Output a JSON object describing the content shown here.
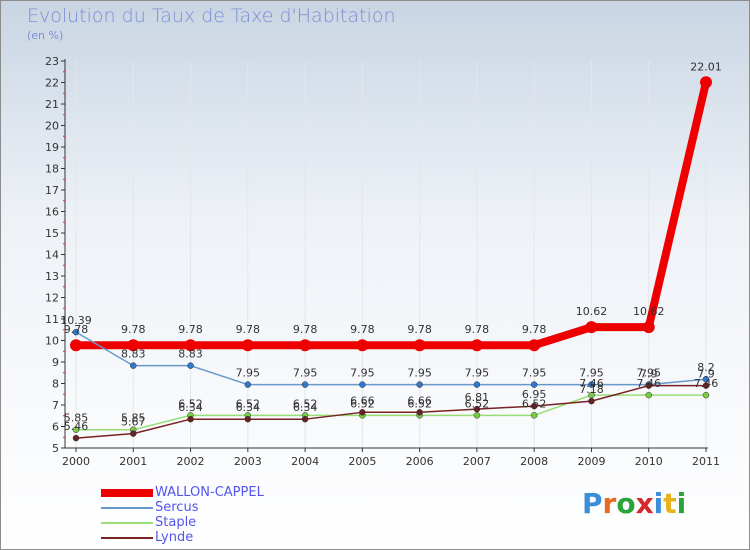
{
  "title": "Evolution du Taux de Taxe d'Habitation",
  "subtitle": "(en %)",
  "logo_text": "Proxiti",
  "logo_letters": [
    "P",
    "r",
    "o",
    "x",
    "i",
    "t",
    "i"
  ],
  "logo_colors": [
    "#3a8fd8",
    "#e86a1c",
    "#2aa33a",
    "#d8282e",
    "#3a8fd8",
    "#e8b21c",
    "#2aa33a"
  ],
  "chart_data": {
    "type": "line",
    "title": "Evolution du Taux de Taxe d'Habitation",
    "ylabel": "(en %)",
    "xlabel": "",
    "categories": [
      "2000",
      "2001",
      "2002",
      "2003",
      "2004",
      "2005",
      "2006",
      "2007",
      "2008",
      "2009",
      "2010",
      "2011"
    ],
    "ylim": [
      5,
      23
    ],
    "yticks": [
      5,
      6,
      7,
      8,
      9,
      10,
      11,
      12,
      13,
      14,
      15,
      16,
      17,
      18,
      19,
      20,
      21,
      22,
      23
    ],
    "series": [
      {
        "name": "WALLON-CAPPEL",
        "color": "#ee0000",
        "marker": "#ee0000",
        "width": 8,
        "values": [
          9.78,
          9.78,
          9.78,
          9.78,
          9.78,
          9.78,
          9.78,
          9.78,
          9.78,
          10.62,
          10.62,
          22.01
        ],
        "labels": [
          "9.78",
          "9.78",
          "9.78",
          "9.78",
          "9.78",
          "9.78",
          "9.78",
          "9.78",
          "9.78",
          "10.62",
          "10.62",
          "22.01"
        ]
      },
      {
        "name": "Sercus",
        "color": "#6699cc",
        "marker": "#3377cc",
        "width": 1.5,
        "values": [
          10.39,
          8.83,
          8.83,
          7.95,
          7.95,
          7.95,
          7.95,
          7.95,
          7.95,
          7.95,
          7.95,
          8.2
        ],
        "labels": [
          "10.39",
          "8.83",
          "8.83",
          "7.95",
          "7.95",
          "7.95",
          "7.95",
          "7.95",
          "7.95",
          "7.95",
          "7.95",
          "8.2"
        ]
      },
      {
        "name": "Staple",
        "color": "#99dd77",
        "marker": "#77cc44",
        "width": 1.5,
        "values": [
          5.85,
          5.85,
          6.52,
          6.52,
          6.52,
          6.52,
          6.52,
          6.52,
          6.52,
          7.46,
          7.46,
          7.46
        ],
        "labels": [
          "5.85",
          "5.85",
          "6.52",
          "6.52",
          "6.52",
          "6.52",
          "6.52",
          "6.52",
          "6.52",
          "7.46",
          "7.46",
          "7.46"
        ]
      },
      {
        "name": "Lynde",
        "color": "#772222",
        "marker": "#662222",
        "width": 1.5,
        "values": [
          5.46,
          5.67,
          6.34,
          6.34,
          6.34,
          6.66,
          6.66,
          6.81,
          6.95,
          7.18,
          7.9,
          7.9
        ],
        "labels": [
          "5.46",
          "5.67",
          "6.34",
          "6.34",
          "6.34",
          "6.66",
          "6.66",
          "6.81",
          "6.95",
          "7.18",
          "7.9",
          "7.9"
        ]
      }
    ]
  }
}
